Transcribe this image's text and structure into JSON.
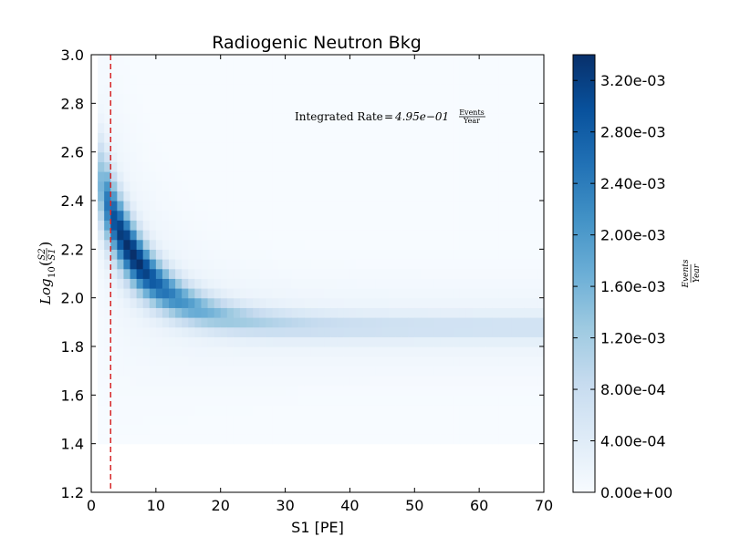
{
  "chart_data": {
    "type": "heatmap",
    "title": "Radiogenic Neutron Bkg",
    "xlabel": "S1 [PE]",
    "ylabel": {
      "base": "Log",
      "sub": "10",
      "num": "S2",
      "den": "S1"
    },
    "xlim": [
      0,
      70
    ],
    "ylim": [
      1.2,
      3.0
    ],
    "xticks": [
      "0",
      "10",
      "20",
      "30",
      "40",
      "50",
      "60",
      "70"
    ],
    "yticks": [
      "1.2",
      "1.4",
      "1.6",
      "1.8",
      "2.0",
      "2.2",
      "2.4",
      "2.6",
      "2.8",
      "3.0"
    ],
    "threshold_line": {
      "x": 3,
      "color": "#d62728",
      "style": "dashed"
    },
    "annotation": {
      "text": "Integrated Rate = 4.95e-01",
      "lhs": "Integrated Rate",
      "rhs": "4.95e−01",
      "num": "Events",
      "den": "Year"
    },
    "bins": {
      "x_start": 1,
      "x_step": 1,
      "x_count": 69,
      "y_start": 1.4,
      "y_step": 0.04,
      "y_count": 40
    },
    "z_max": 0.0034,
    "colorbar": {
      "label": {
        "num": "Events",
        "den": "Year"
      },
      "ticks": [
        "0.00e+00",
        "4.00e-04",
        "8.00e-04",
        "1.20e-03",
        "1.60e-03",
        "2.00e-03",
        "2.40e-03",
        "2.80e-03",
        "3.20e-03"
      ],
      "tick_values": [
        0,
        0.0004,
        0.0008,
        0.0012,
        0.0016,
        0.002,
        0.0024,
        0.0028,
        0.0032
      ],
      "colormap": "Blues",
      "colors": [
        "#f7fbff",
        "#deebf7",
        "#c6dbef",
        "#9ecae1",
        "#6baed6",
        "#4292c6",
        "#2171b5",
        "#08519c",
        "#08306b"
      ]
    }
  }
}
